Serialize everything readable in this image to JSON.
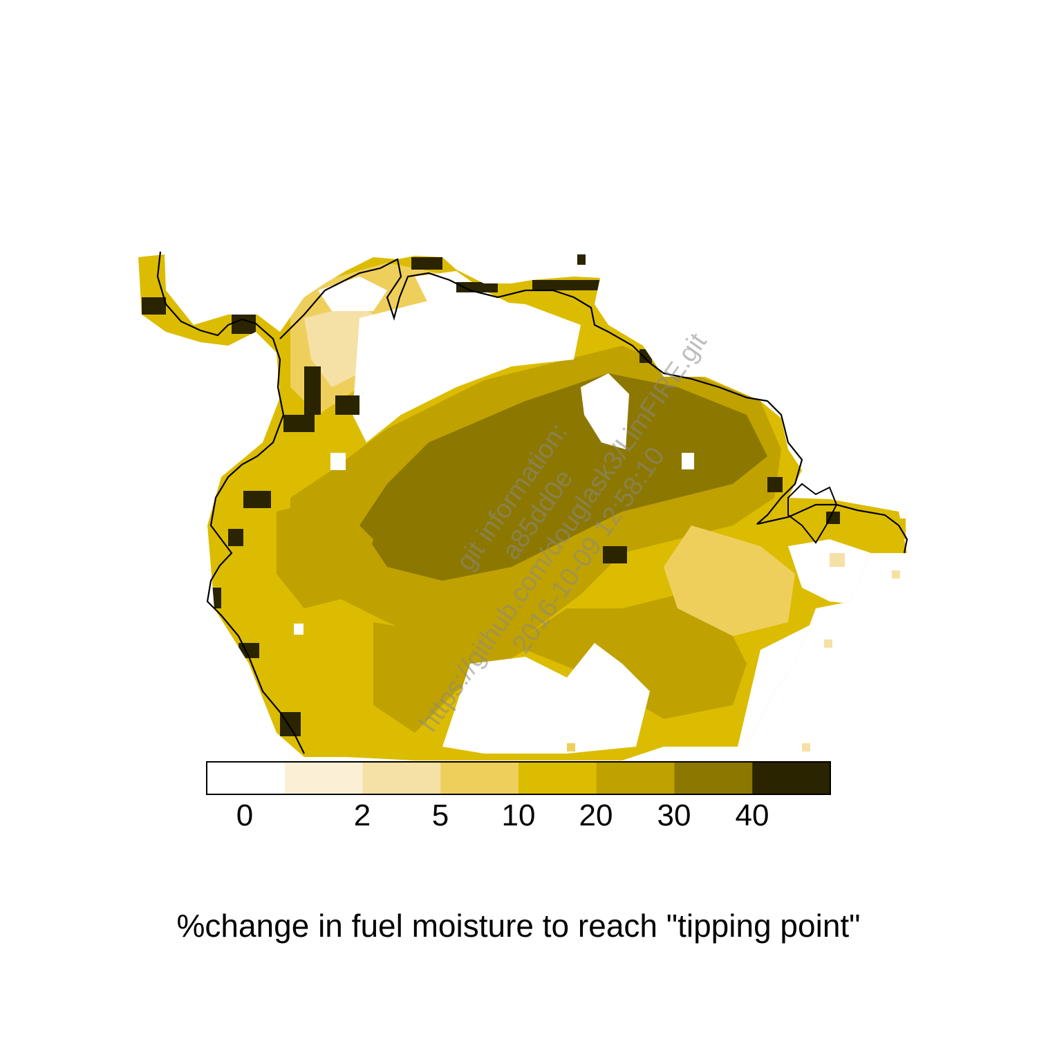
{
  "map": {
    "caption": "%change in fuel moisture to reach \"tipping point\"",
    "legend": {
      "colors": [
        "#ffffff",
        "#fbf0d6",
        "#f5e0a6",
        "#efcf5c",
        "#dcbc00",
        "#bfa100",
        "#8c7800",
        "#2a2400"
      ],
      "tick_labels": [
        "0",
        "2",
        "5",
        "10",
        "20",
        "30",
        "40"
      ]
    },
    "watermark": {
      "lines": [
        "git information:",
        "a85dd0e",
        "https://github.com/douglask3/LimFIRE.git",
        "2016-10-09 12:58:10"
      ]
    }
  }
}
